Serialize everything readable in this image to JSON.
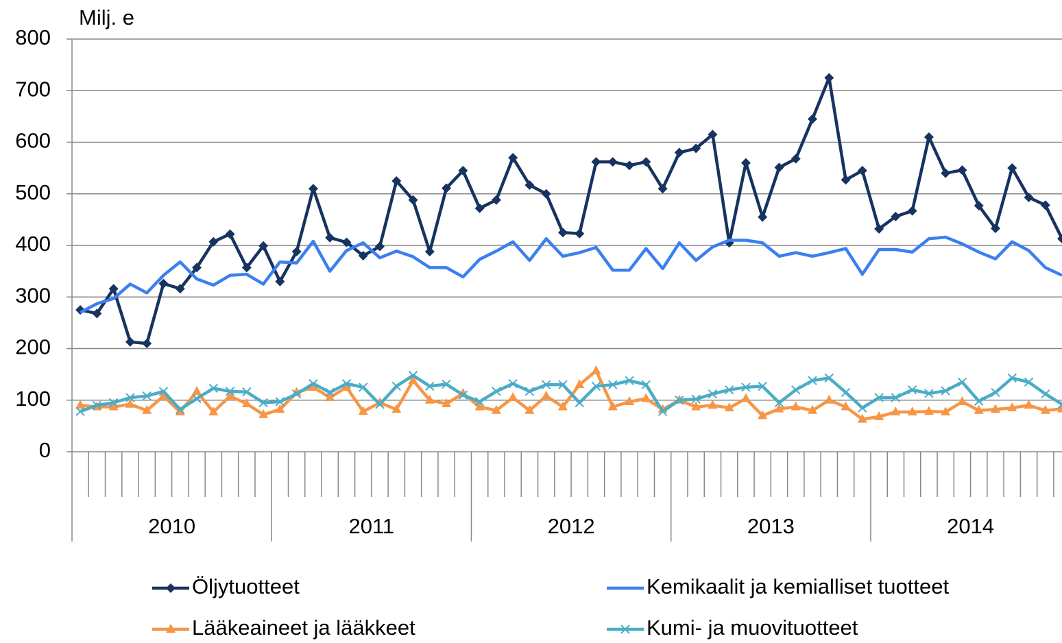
{
  "chart_data": {
    "type": "line",
    "ylabel": "Milj. e",
    "categories": [
      null,
      null,
      null,
      null,
      null,
      null,
      null,
      null,
      null,
      null,
      null,
      null,
      null,
      null,
      null,
      null,
      null,
      null,
      null,
      null,
      null,
      null,
      null,
      null,
      null,
      null,
      null,
      null,
      null,
      null,
      null,
      null,
      null,
      null,
      null,
      null,
      null,
      null,
      null,
      null,
      null,
      null,
      null,
      null,
      null,
      null,
      null,
      null,
      null,
      null,
      null,
      null,
      null,
      null,
      null,
      null,
      null,
      null,
      null,
      null
    ],
    "x_groups": [
      "2010",
      "2011",
      "2012",
      "2013",
      "2014"
    ],
    "ylim": [
      0,
      800
    ],
    "yticks": [
      0,
      100,
      200,
      300,
      400,
      500,
      600,
      700,
      800
    ],
    "grid": true,
    "legend": "bottom",
    "series": [
      {
        "name": "Öljytuotteet",
        "color": "#17335f",
        "marker": "diamond",
        "values": [
          275,
          268,
          316,
          213,
          210,
          326,
          316,
          357,
          407,
          422,
          357,
          399,
          330,
          388,
          510,
          415,
          406,
          380,
          398,
          525,
          488,
          388,
          511,
          545,
          472,
          488,
          570,
          517,
          500,
          425,
          423,
          562,
          562,
          555,
          562,
          510,
          580,
          588,
          615,
          405,
          560,
          455,
          551,
          568,
          645,
          725,
          527,
          545,
          432,
          456,
          467,
          610,
          540,
          546,
          477,
          433,
          550,
          493,
          478,
          413
        ]
      },
      {
        "name": "Kemikaalit ja kemialliset tuotteet",
        "color": "#3b7ff0",
        "marker": "none",
        "values": [
          270,
          287,
          297,
          325,
          308,
          342,
          368,
          335,
          323,
          342,
          344,
          325,
          368,
          366,
          408,
          350,
          390,
          405,
          376,
          389,
          378,
          357,
          357,
          339,
          373,
          389,
          407,
          371,
          413,
          379,
          386,
          396,
          352,
          352,
          394,
          355,
          405,
          371,
          397,
          410,
          410,
          405,
          379,
          386,
          379,
          386,
          394,
          344,
          392,
          392,
          387,
          413,
          416,
          403,
          387,
          374,
          407,
          390,
          357,
          342
        ]
      },
      {
        "name": "Lääkeaineet ja lääkkeet",
        "color": "#f79646",
        "marker": "triangle",
        "values": [
          90,
          87,
          87,
          92,
          80,
          108,
          77,
          117,
          77,
          108,
          93,
          72,
          82,
          115,
          125,
          105,
          125,
          78,
          95,
          82,
          138,
          100,
          93,
          113,
          87,
          80,
          105,
          80,
          108,
          87,
          130,
          157,
          87,
          97,
          103,
          82,
          100,
          87,
          90,
          85,
          103,
          70,
          83,
          87,
          80,
          100,
          87,
          63,
          68,
          77,
          77,
          78,
          77,
          97,
          80,
          82,
          85,
          90,
          80,
          83
        ]
      },
      {
        "name": "Kumi- ja muovituotteet",
        "color": "#4bacc6",
        "marker": "x",
        "values": [
          78,
          90,
          95,
          105,
          108,
          117,
          82,
          103,
          123,
          117,
          116,
          95,
          97,
          112,
          132,
          115,
          132,
          125,
          92,
          127,
          148,
          127,
          131,
          110,
          97,
          117,
          132,
          117,
          130,
          130,
          95,
          127,
          130,
          138,
          130,
          78,
          100,
          102,
          112,
          120,
          125,
          127,
          95,
          120,
          138,
          143,
          115,
          85,
          105,
          105,
          120,
          113,
          118,
          135,
          98,
          115,
          143,
          135,
          112,
          92
        ]
      }
    ]
  }
}
